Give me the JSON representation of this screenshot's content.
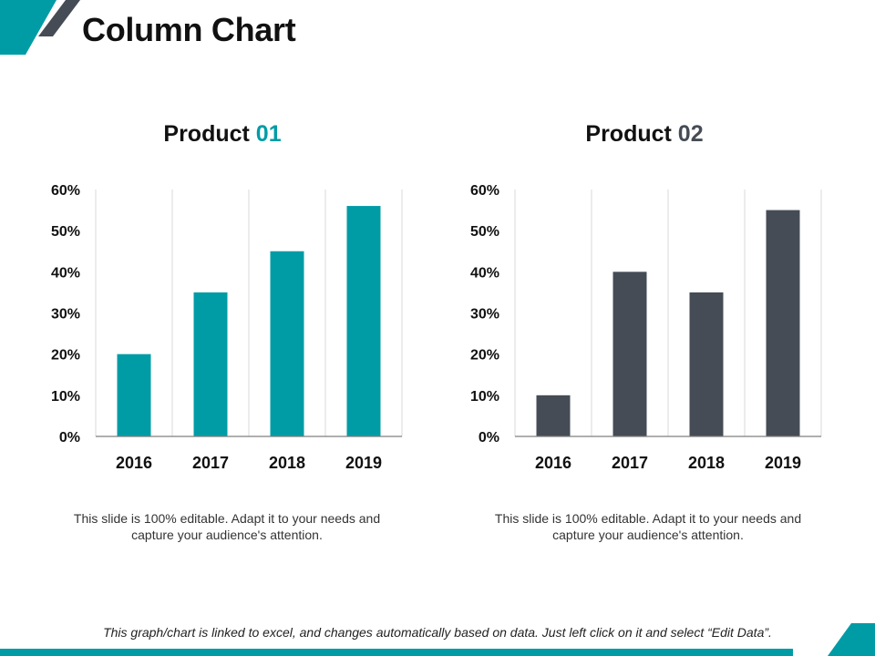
{
  "title": "Column Chart",
  "colors": {
    "accent": "#009ca6",
    "dark": "#464c55",
    "grid": "#d9d9d9",
    "axis": "#7f7f7f"
  },
  "charts": [
    {
      "title_main": "Product ",
      "title_number": "01",
      "caption_line1": "This slide is 100% editable. Adapt it to your needs and",
      "caption_line2": "capture your audience's attention."
    },
    {
      "title_main": "Product ",
      "title_number": "02",
      "caption_line1": "This slide is 100% editable. Adapt it to your needs and",
      "caption_line2": "capture your audience's attention."
    }
  ],
  "footer": "This graph/chart is linked to excel, and changes automatically based on data. Just left click on it and select “Edit Data”.",
  "chart_data": [
    {
      "type": "bar",
      "title": "Product 01",
      "categories": [
        "2016",
        "2017",
        "2018",
        "2019"
      ],
      "values": [
        20,
        35,
        45,
        56
      ],
      "ylim": [
        0,
        60
      ],
      "yticks": [
        "0%",
        "10%",
        "20%",
        "30%",
        "40%",
        "50%",
        "60%"
      ],
      "color": "#009ca6",
      "grid": true
    },
    {
      "type": "bar",
      "title": "Product 02",
      "categories": [
        "2016",
        "2017",
        "2018",
        "2019"
      ],
      "values": [
        10,
        40,
        35,
        55
      ],
      "ylim": [
        0,
        60
      ],
      "yticks": [
        "0%",
        "10%",
        "20%",
        "30%",
        "40%",
        "50%",
        "60%"
      ],
      "color": "#464c55",
      "grid": true
    }
  ]
}
